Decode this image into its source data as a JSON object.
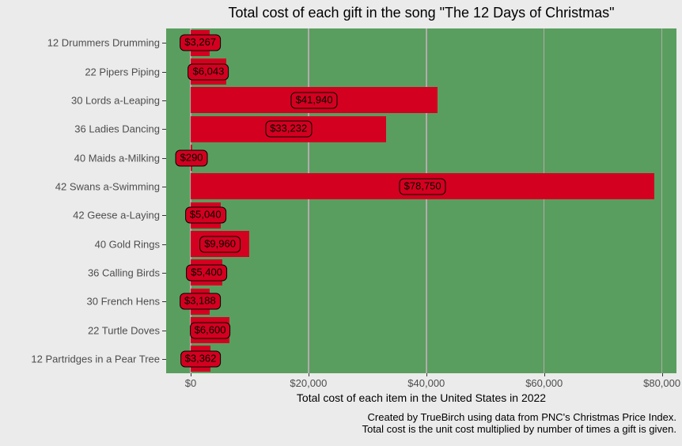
{
  "title": "Total cost of each gift in the song \"The 12 Days of Christmas\"",
  "chart_data": {
    "type": "bar",
    "orientation": "horizontal",
    "title": "Total cost of each gift in the song \"The 12 Days of Christmas\"",
    "xlabel": "Total cost of each item in the United States in 2022",
    "ylabel": "",
    "xlim": [
      -4164,
      82470
    ],
    "grid": "vertical-major-only",
    "legend": "none",
    "x_ticks": [
      0,
      20000,
      40000,
      60000,
      80000
    ],
    "x_tick_labels": [
      "$0",
      "$20,000",
      "$40,000",
      "$60,000",
      "$80,000"
    ],
    "categories": [
      "12 Drummers Drumming",
      "22 Pipers Piping",
      "30 Lords a-Leaping",
      "36 Ladies Dancing",
      "40 Maids a-Milking",
      "42 Swans a-Swimming",
      "42 Geese a-Laying",
      "40 Gold Rings",
      "36 Calling Birds",
      "30 French Hens",
      "22 Turtle Doves",
      "12 Partridges in a Pear Tree"
    ],
    "values": [
      3267,
      6043,
      41940,
      33232,
      290,
      78750,
      5040,
      9960,
      5400,
      3188,
      6600,
      3362
    ],
    "value_labels": [
      "$3,267",
      "$6,043",
      "$41,940",
      "$33,232",
      "$290",
      "$78,750",
      "$5,040",
      "$9,960",
      "$5,400",
      "$3,188",
      "$6,600",
      "$3,362"
    ]
  },
  "caption": {
    "line1": "Created by TrueBirch using data from PNC's Christmas Price Index.",
    "line2": "Total cost is the unit cost multiplied by number of times a gift is given."
  },
  "colors": {
    "bar": "#d40020",
    "panel_bg": "#5a9e5f",
    "outer_bg": "#ebebeb",
    "gridline": "#b3abad",
    "axis_text": "#4d4d4d",
    "title_text": "#000000",
    "label_box_border": "#000000"
  }
}
